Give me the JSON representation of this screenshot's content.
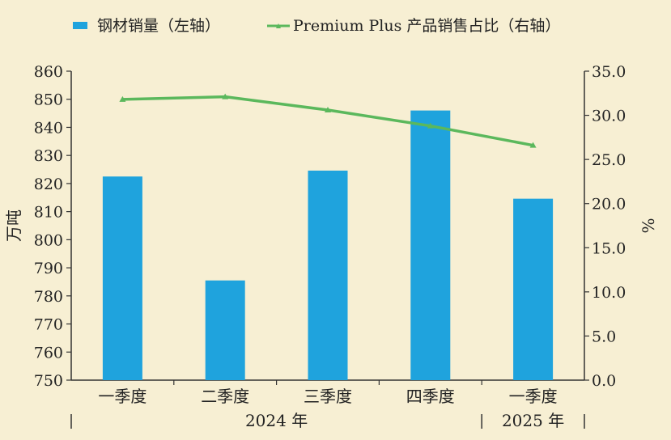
{
  "chart_data": {
    "type": "bar",
    "categories": [
      "一季度",
      "二季度",
      "三季度",
      "四季度",
      "一季度"
    ],
    "year_groups": [
      {
        "label": "2024 年",
        "span": [
          0,
          3
        ]
      },
      {
        "label": "2025 年",
        "span": [
          4,
          4
        ]
      }
    ],
    "series": [
      {
        "name": "钢材销量（左轴）",
        "kind": "bar",
        "axis": "left",
        "values": [
          822.5,
          785.5,
          824.6,
          846.0,
          814.6
        ]
      },
      {
        "name": "Premium Plus 产品销售占比（右轴）",
        "kind": "line",
        "axis": "right",
        "values": [
          31.8,
          32.1,
          30.6,
          28.8,
          26.6
        ]
      }
    ],
    "ylabel_left": "万吨",
    "ylabel_right": "%",
    "ylim_left": [
      750,
      860
    ],
    "ylim_right": [
      0,
      35
    ],
    "yticks_left": [
      "750",
      "760",
      "770",
      "780",
      "790",
      "800",
      "810",
      "820",
      "830",
      "840",
      "850",
      "860"
    ],
    "yticks_right": [
      "0.0",
      "5.0",
      "10.0",
      "15.0",
      "20.0",
      "25.0",
      "30.0",
      "35.0"
    ],
    "colors": {
      "bar": "#1fa3dd",
      "line": "#5bb85c",
      "background": "#f7efd3",
      "axis": "#333333"
    },
    "legend_position": "top"
  }
}
